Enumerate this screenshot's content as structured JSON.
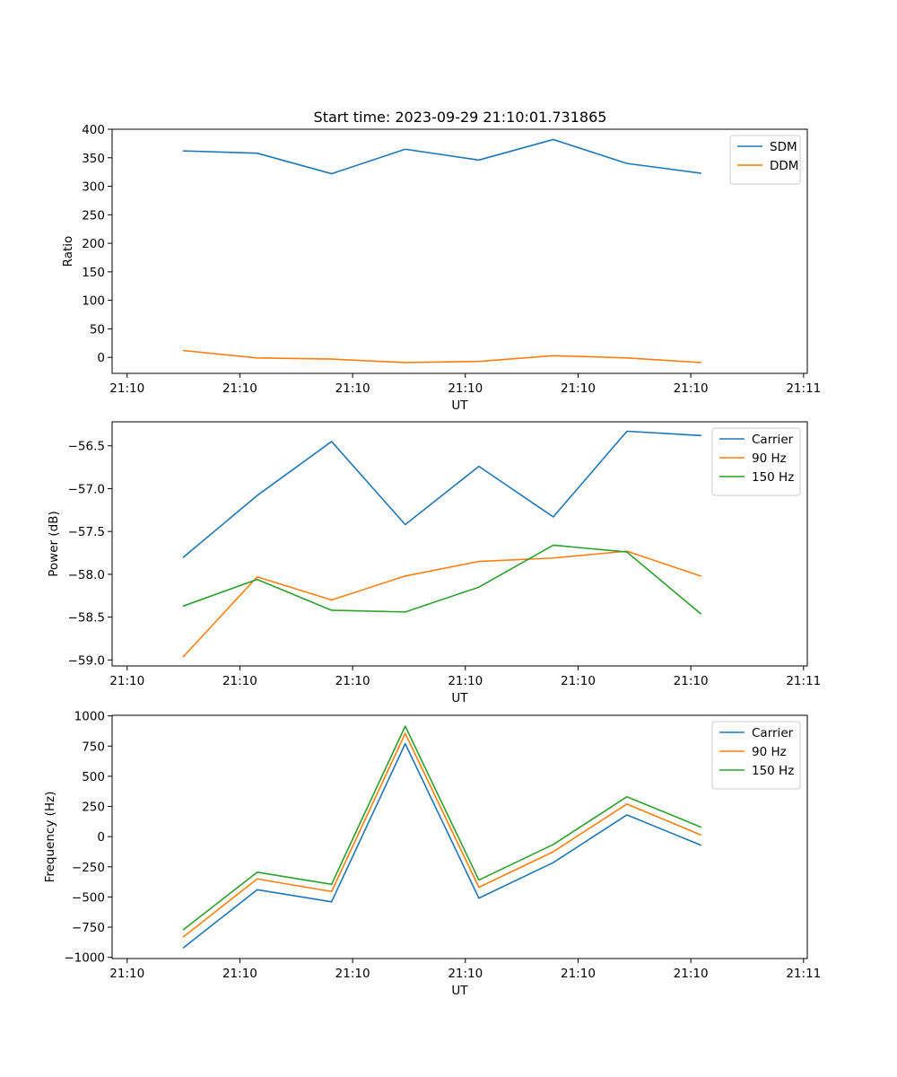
{
  "figure": {
    "title": "Start time: 2023-09-29 21:10:01.731865"
  },
  "chart_data": [
    {
      "type": "line",
      "xlabel": "UT",
      "ylabel": "Ratio",
      "ylim": [
        -28,
        400
      ],
      "yticks": [
        0,
        50,
        100,
        150,
        200,
        250,
        300,
        350,
        400
      ],
      "ytick_labels": [
        "0",
        "50",
        "100",
        "150",
        "200",
        "250",
        "300",
        "350",
        "400"
      ],
      "xlim": [
        0,
        9.25
      ],
      "xticks": [
        0.2,
        1.7,
        3.2,
        4.7,
        6.2,
        7.7,
        9.2
      ],
      "xtick_labels": [
        "21:10",
        "21:10",
        "21:10",
        "21:10",
        "21:10",
        "21:10",
        "21:11"
      ],
      "x": [
        0.95,
        1.93,
        2.92,
        3.9,
        4.88,
        5.87,
        6.85,
        7.83
      ],
      "legend_position": "top-right",
      "series": [
        {
          "name": "SDM",
          "color": "#1f77b4",
          "values": [
            362,
            358,
            322,
            365,
            346,
            382,
            340,
            323
          ]
        },
        {
          "name": "DDM",
          "color": "#ff7f0e",
          "values": [
            12,
            -1,
            -3,
            -9,
            -7,
            3,
            -1,
            -9
          ]
        }
      ]
    },
    {
      "type": "line",
      "xlabel": "UT",
      "ylabel": "Power (dB)",
      "ylim": [
        -59.07,
        -56.22
      ],
      "yticks": [
        -59.0,
        -58.5,
        -58.0,
        -57.5,
        -57.0,
        -56.5
      ],
      "ytick_labels": [
        "−59.0",
        "−58.5",
        "−58.0",
        "−57.5",
        "−57.0",
        "−56.5"
      ],
      "xlim": [
        0,
        9.25
      ],
      "xticks": [
        0.2,
        1.7,
        3.2,
        4.7,
        6.2,
        7.7,
        9.2
      ],
      "xtick_labels": [
        "21:10",
        "21:10",
        "21:10",
        "21:10",
        "21:10",
        "21:10",
        "21:11"
      ],
      "x": [
        0.95,
        1.93,
        2.92,
        3.9,
        4.88,
        5.87,
        6.85,
        7.83
      ],
      "legend_position": "top-right",
      "series": [
        {
          "name": "Carrier",
          "color": "#1f77b4",
          "values": [
            -57.8,
            -57.08,
            -56.45,
            -57.42,
            -56.74,
            -57.33,
            -56.33,
            -56.38
          ]
        },
        {
          "name": "90 Hz",
          "color": "#ff7f0e",
          "values": [
            -58.96,
            -58.03,
            -58.3,
            -58.02,
            -57.85,
            -57.81,
            -57.73,
            -58.02
          ]
        },
        {
          "name": "150 Hz",
          "color": "#2ca02c",
          "values": [
            -58.37,
            -58.06,
            -58.42,
            -58.44,
            -58.15,
            -57.66,
            -57.74,
            -58.46
          ]
        }
      ]
    },
    {
      "type": "line",
      "xlabel": "UT",
      "ylabel": "Frequency (Hz)",
      "ylim": [
        -1010,
        1005
      ],
      "yticks": [
        -1000,
        -750,
        -500,
        -250,
        0,
        250,
        500,
        750,
        1000
      ],
      "ytick_labels": [
        "−1000",
        "−750",
        "−500",
        "−250",
        "0",
        "250",
        "500",
        "750",
        "1000"
      ],
      "xlim": [
        0,
        9.25
      ],
      "xticks": [
        0.2,
        1.7,
        3.2,
        4.7,
        6.2,
        7.7,
        9.2
      ],
      "xtick_labels": [
        "21:10",
        "21:10",
        "21:10",
        "21:10",
        "21:10",
        "21:10",
        "21:11"
      ],
      "x": [
        0.95,
        1.93,
        2.92,
        3.9,
        4.88,
        5.87,
        6.85,
        7.83
      ],
      "legend_position": "top-right",
      "series": [
        {
          "name": "Carrier",
          "color": "#1f77b4",
          "values": [
            -920,
            -440,
            -540,
            770,
            -510,
            -215,
            180,
            -70
          ]
        },
        {
          "name": "90 Hz",
          "color": "#ff7f0e",
          "values": [
            -830,
            -350,
            -455,
            855,
            -420,
            -125,
            270,
            15
          ]
        },
        {
          "name": "150 Hz",
          "color": "#2ca02c",
          "values": [
            -770,
            -295,
            -395,
            915,
            -360,
            -65,
            330,
            80
          ]
        }
      ]
    }
  ]
}
